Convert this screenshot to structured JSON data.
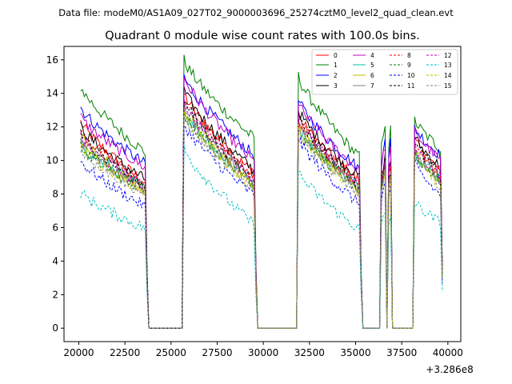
{
  "suptitle": "Data file: modeM0/AS1A09_027T02_9000003696_25274cztM0_level2_quad_clean.evt",
  "chart_data": {
    "type": "line",
    "title": "Quadrant 0 module wise count rates with 100.0s bins.",
    "xlabel": "",
    "ylabel": "",
    "x_offset_label": "+3.286e8",
    "xlim": [
      19200,
      40700
    ],
    "ylim": [
      -0.8,
      16.8
    ],
    "x_ticks": [
      20000,
      22500,
      25000,
      27500,
      30000,
      32500,
      35000,
      37500,
      40000
    ],
    "x_tick_labels": [
      "20000",
      "22500",
      "25000",
      "27500",
      "30000",
      "32500",
      "35000",
      "37500",
      "40000"
    ],
    "y_ticks": [
      0,
      2,
      4,
      6,
      8,
      10,
      12,
      14,
      16
    ],
    "y_tick_labels": [
      "0",
      "2",
      "4",
      "6",
      "8",
      "10",
      "12",
      "14",
      "16"
    ],
    "legend_position": "top-right",
    "legend_columns": 4,
    "bin_width_s": 100,
    "gap_value": 0,
    "segments": [
      {
        "start": 20100,
        "end": 23700
      },
      {
        "start": 25700,
        "end": 29600
      },
      {
        "start": 31900,
        "end": 35300
      },
      {
        "start": 36400,
        "end": 36600
      },
      {
        "start": 36800,
        "end": 36900
      },
      {
        "start": 38200,
        "end": 39700
      }
    ],
    "series": [
      {
        "name": "0",
        "color": "#ff0000",
        "dash": "solid",
        "segment_levels": [
          [
            12.3,
            8.6
          ],
          [
            14.0,
            9.1
          ],
          [
            12.7,
            8.7
          ],
          [
            8.8,
            10.0
          ],
          [
            9.4,
            9.6
          ],
          [
            11.2,
            9.3
          ]
        ]
      },
      {
        "name": "1",
        "color": "#008000",
        "dash": "solid",
        "segment_levels": [
          [
            14.4,
            10.4
          ],
          [
            16.0,
            11.2
          ],
          [
            15.0,
            10.1
          ],
          [
            10.8,
            12.3
          ],
          [
            10.9,
            11.8
          ],
          [
            12.4,
            10.6
          ]
        ]
      },
      {
        "name": "2",
        "color": "#0000ff",
        "dash": "solid",
        "segment_levels": [
          [
            13.2,
            9.7
          ],
          [
            15.0,
            10.2
          ],
          [
            13.6,
            9.4
          ],
          [
            9.9,
            11.5
          ],
          [
            10.2,
            11.1
          ],
          [
            12.0,
            10.2
          ]
        ]
      },
      {
        "name": "3",
        "color": "#000000",
        "dash": "solid",
        "segment_levels": [
          [
            12.0,
            8.8
          ],
          [
            14.2,
            9.3
          ],
          [
            13.0,
            8.9
          ],
          [
            9.0,
            10.2
          ],
          [
            9.6,
            10.0
          ],
          [
            11.4,
            9.5
          ]
        ]
      },
      {
        "name": "4",
        "color": "#bf00bf",
        "dash": "solid",
        "segment_levels": [
          [
            12.6,
            9.5
          ],
          [
            15.0,
            9.8
          ],
          [
            13.4,
            9.3
          ],
          [
            9.6,
            10.9
          ],
          [
            10.0,
            10.5
          ],
          [
            11.8,
            9.9
          ]
        ]
      },
      {
        "name": "5",
        "color": "#00bfa0",
        "dash": "solid",
        "segment_levels": [
          [
            11.0,
            8.3
          ],
          [
            13.0,
            8.5
          ],
          [
            12.1,
            8.3
          ],
          [
            8.4,
            9.6
          ],
          [
            8.8,
            9.2
          ],
          [
            10.6,
            8.8
          ]
        ]
      },
      {
        "name": "6",
        "color": "#bfbf00",
        "dash": "solid",
        "segment_levels": [
          [
            11.5,
            8.0
          ],
          [
            13.2,
            8.4
          ],
          [
            12.3,
            8.0
          ],
          [
            8.2,
            9.4
          ],
          [
            8.6,
            9.0
          ],
          [
            10.8,
            8.6
          ]
        ]
      },
      {
        "name": "7",
        "color": "#808080",
        "dash": "solid",
        "segment_levels": [
          [
            11.2,
            8.2
          ],
          [
            13.4,
            8.6
          ],
          [
            12.2,
            8.2
          ],
          [
            8.3,
            9.5
          ],
          [
            8.7,
            9.1
          ],
          [
            10.7,
            8.7
          ]
        ]
      },
      {
        "name": "8",
        "color": "#ff0000",
        "dash": "dashed",
        "segment_levels": [
          [
            11.8,
            8.5
          ],
          [
            13.8,
            9.0
          ],
          [
            12.5,
            8.5
          ],
          [
            8.7,
            9.9
          ],
          [
            9.2,
            9.5
          ],
          [
            11.0,
            9.2
          ]
        ]
      },
      {
        "name": "9",
        "color": "#008000",
        "dash": "dashed",
        "segment_levels": [
          [
            10.8,
            8.1
          ],
          [
            12.9,
            8.5
          ],
          [
            11.9,
            8.1
          ],
          [
            8.3,
            9.5
          ],
          [
            8.7,
            9.1
          ],
          [
            10.4,
            8.7
          ]
        ]
      },
      {
        "name": "10",
        "color": "#0000ff",
        "dash": "dashed",
        "segment_levels": [
          [
            10.0,
            7.2
          ],
          [
            12.2,
            7.8
          ],
          [
            11.3,
            7.3
          ],
          [
            7.5,
            8.7
          ],
          [
            7.9,
            8.3
          ],
          [
            9.8,
            7.8
          ]
        ]
      },
      {
        "name": "11",
        "color": "#000000",
        "dash": "dashed",
        "segment_levels": [
          [
            11.6,
            8.4
          ],
          [
            13.6,
            8.8
          ],
          [
            12.6,
            8.4
          ],
          [
            8.6,
            9.8
          ],
          [
            9.0,
            9.4
          ],
          [
            11.1,
            9.0
          ]
        ]
      },
      {
        "name": "12",
        "color": "#bf00bf",
        "dash": "dashed",
        "segment_levels": [
          [
            11.4,
            8.3
          ],
          [
            13.5,
            8.7
          ],
          [
            12.4,
            8.3
          ],
          [
            8.5,
            9.7
          ],
          [
            8.9,
            9.3
          ],
          [
            10.9,
            8.9
          ]
        ]
      },
      {
        "name": "13",
        "color": "#00bfbf",
        "dash": "dashed",
        "segment_levels": [
          [
            8.1,
            5.9
          ],
          [
            10.7,
            6.1
          ],
          [
            9.3,
            5.8
          ],
          [
            6.0,
            6.9
          ],
          [
            6.2,
            6.6
          ],
          [
            7.5,
            6.2
          ]
        ]
      },
      {
        "name": "14",
        "color": "#bfbf00",
        "dash": "dashed",
        "segment_levels": [
          [
            10.9,
            8.0
          ],
          [
            12.8,
            8.3
          ],
          [
            11.9,
            8.0
          ],
          [
            8.1,
            9.3
          ],
          [
            8.5,
            8.9
          ],
          [
            10.4,
            8.5
          ]
        ]
      },
      {
        "name": "15",
        "color": "#808080",
        "dash": "dashed",
        "segment_levels": [
          [
            10.7,
            7.9
          ],
          [
            12.6,
            8.2
          ],
          [
            11.8,
            7.9
          ],
          [
            8.0,
            9.2
          ],
          [
            8.4,
            8.8
          ],
          [
            10.3,
            8.4
          ]
        ]
      }
    ]
  }
}
